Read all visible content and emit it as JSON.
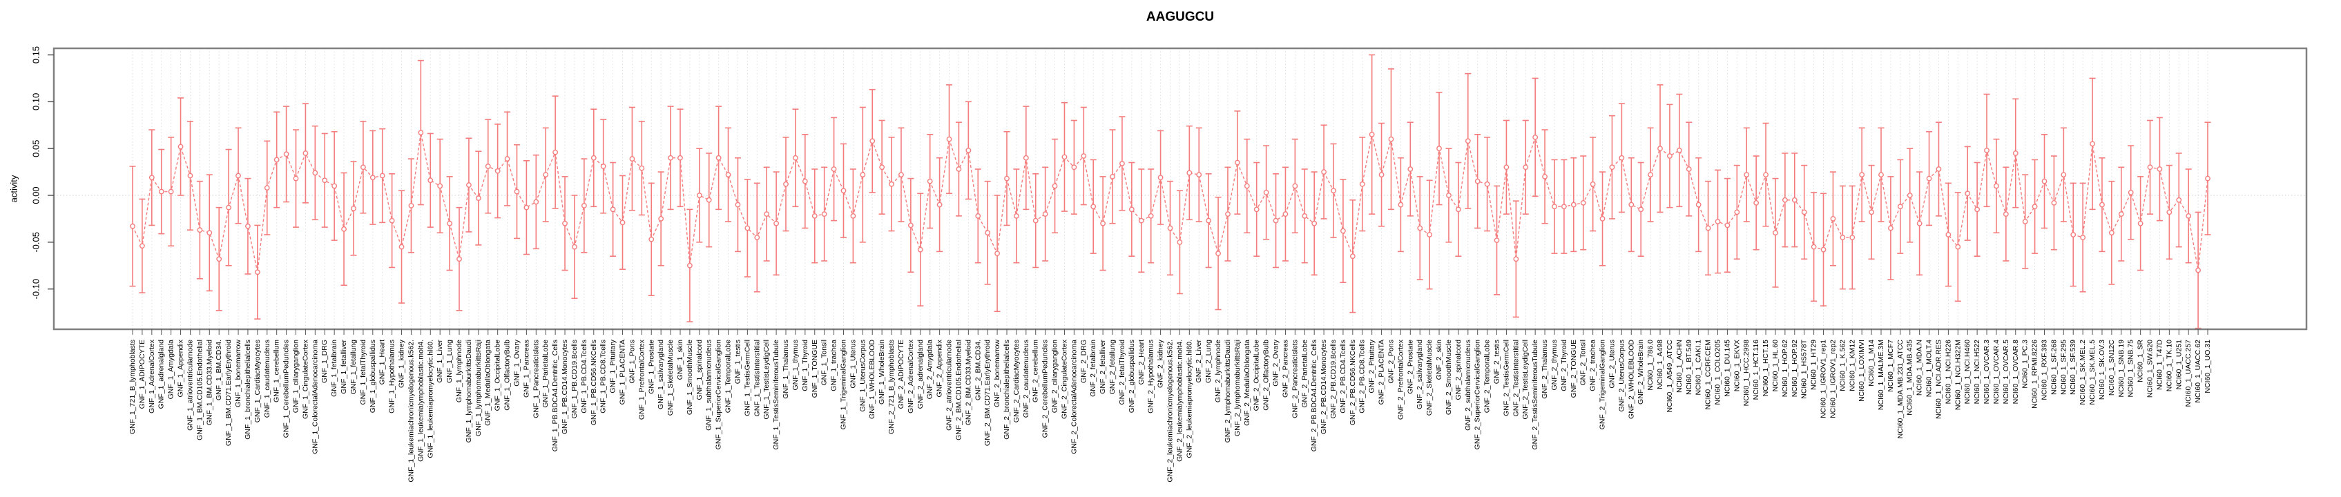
{
  "figure": {
    "title": "AAGUGCU"
  },
  "chart_data": {
    "type": "scatter",
    "title": "AAGUGCU",
    "xlabel": "",
    "ylabel": "activity",
    "ylim": [
      -0.143,
      0.157
    ],
    "yticks": [
      -0.1,
      -0.05,
      0.0,
      0.05,
      0.1,
      0.15
    ],
    "ytick_labels": [
      "-0.10",
      "-0.05",
      "0.00",
      "0.05",
      "0.10",
      "0.15"
    ],
    "legend_position": "none",
    "grid": {
      "vertical_per_category": true,
      "zero_line": true,
      "style": "dotted"
    },
    "marker": "open-circle",
    "line_style": "dashed",
    "error_bars": true,
    "colors": {
      "data": "#F47C7C",
      "box": "#808080",
      "grid": "#DEDEDE",
      "zero_line": "#CFCFCF",
      "tick": "#555555",
      "text": "#000000",
      "background": "#FFFFFF"
    },
    "categories": [
      "GNF_1_721_B_lymphoblasts",
      "GNF_1_ADIPOCYTE",
      "GNF_1_AdrenalCortex",
      "GNF_1_adrenalgland",
      "GNF_1_Amygdala",
      "GNF_1_Appendix",
      "GNF_1_atrioventricularnode",
      "GNF_1_BM.CD105.Endothelial",
      "GNF_1_BM.CD33.Myeloid",
      "GNF_1_BM.CD34.",
      "GNF_1_BM.CD71.EarlyErythroid",
      "GNF_1_bonemarrow",
      "GNF_1_bronchialepithelialcells",
      "GNF_1_CardiacMyocytes",
      "GNF_1_caudatenucleus",
      "GNF_1_cerebellum",
      "GNF_1_CerebellumPeduncles",
      "GNF_1_ciliaryganglion",
      "GNF_1_CingulateCortex",
      "GNF_1_ColorectalAdenocarcinoma",
      "GNF_1_DRG",
      "GNF_1_fetalbrain",
      "GNF_1_fetalliver",
      "GNF_1_fetallung",
      "GNF_1_fetalThyroid",
      "GNF_1_globuspallidus",
      "GNF_1_Heart",
      "GNF_1_Hypothalamus",
      "GNF_1_kidney",
      "GNF_1_leukemiachronicmyelogenous.k562.",
      "GNF_1_leukemialymphoblastic.molt4.",
      "GNF_1_leukemiapromyelocytic.hl60.",
      "GNF_1_Liver",
      "GNF_1_Lung",
      "GNF_1_lymphnode",
      "GNF_1_lymphomaburkittsDaudi",
      "GNF_1_lymphomaburkittsRaji",
      "GNF_1_MedullaOblongata",
      "GNF_1_OccipitalLobe",
      "GNF_1_OlfactoryBulb",
      "GNF_1_Ovary",
      "GNF_1_Pancreas",
      "GNF_1_PancreaticIslets",
      "GNF_1_ParietalLobe",
      "GNF_1_PB.BDCA4.Dentritic_Cells",
      "GNF_1_PB.CD14.Monocytes",
      "GNF_1_PB.CD19.Bcells",
      "GNF_1_PB.CD4.Tcells",
      "GNF_1_PB.CD56.NKCells",
      "GNF_1_PB.CD8.Tcells",
      "GNF_1_Pituitary",
      "GNF_1_PLACENTA",
      "GNF_1_Pons",
      "GNF_1_PrefrontalCortex",
      "GNF_1_Prostate",
      "GNF_1_salivarygland",
      "GNF_1_SkeletalMuscle",
      "GNF_1_skin",
      "GNF_1_SmoothMuscle",
      "GNF_1_spinalcord",
      "GNF_1_subthalamicnucleus",
      "GNF_1_SuperiorCervicalGanglion",
      "GNF_1_TemporalLobe",
      "GNF_1_testis",
      "GNF_1_TestisGermCell",
      "GNF_1_TestisInterstitial",
      "GNF_1_TestisLeydigCell",
      "GNF_1_TestisSeminiferousTubule",
      "GNF_1_Thalamus",
      "GNF_1_thymus",
      "GNF_1_Thyroid",
      "GNF_1_TONGUE",
      "GNF_1_Tonsil",
      "GNF_1_trachea",
      "GNF_1_TrigeminalGanglion",
      "GNF_1_Uterus",
      "GNF_1_UterusCorpus",
      "GNF_1_WHOLEBLOOD",
      "GNF_1_WholeBrain",
      "GNF_2_721_B_lymphoblasts",
      "GNF_2_ADIPOCYTE",
      "GNF_2_AdrenalCortex",
      "GNF_2_adrenalgland",
      "GNF_2_Amygdala",
      "GNF_2_Appendix",
      "GNF_2_atrioventricularnode",
      "GNF_2_BM.CD105.Endothelial",
      "GNF_2_BM.CD33.Myeloid",
      "GNF_2_BM.CD34.",
      "GNF_2_BM.CD71.EarlyErythroid",
      "GNF_2_bonemarrow",
      "GNF_2_bronchialepithelialcells",
      "GNF_2_CardiacMyocytes",
      "GNF_2_caudatenucleus",
      "GNF_2_cerebellum",
      "GNF_2_CerebellumPeduncles",
      "GNF_2_ciliaryganglion",
      "GNF_2_CingulateCortex",
      "GNF_2_ColorectalAdenocarcinoma",
      "GNF_2_DRG",
      "GNF_2_fetalbrain",
      "GNF_2_fetalliver",
      "GNF_2_fetallung",
      "GNF_2_fetalThyroid",
      "GNF_2_globuspallidus",
      "GNF_2_Heart",
      "GNF_2_Hypothalamus",
      "GNF_2_kidney",
      "GNF_2_leukemiachronicmyelogenous.k562.",
      "GNF_2_leukemialymphoblastic.molt4.",
      "GNF_2_leukemiapromyelocytic.hl60.",
      "GNF_2_Liver",
      "GNF_2_Lung",
      "GNF_2_lymphnode",
      "GNF_2_lymphomaburkittsDaudi",
      "GNF_2_lymphomaburkittsRaji",
      "GNF_2_MedullaOblongata",
      "GNF_2_OccipitalLobe",
      "GNF_2_OlfactoryBulb",
      "GNF_2_Ovary",
      "GNF_2_Pancreas",
      "GNF_2_PancreaticIslets",
      "GNF_2_ParietalLobe",
      "GNF_2_PB.BDCA4.Dentritic_Cells",
      "GNF_2_PB.CD14.Monocytes",
      "GNF_2_PB.CD19.Bcells",
      "GNF_2_PB.CD4.Tcells",
      "GNF_2_PB.CD56.NKCells",
      "GNF_2_PB.CD8.Tcells",
      "GNF_2_Pituitary",
      "GNF_2_PLACENTA",
      "GNF_2_Pons",
      "GNF_2_PrefrontalCortex",
      "GNF_2_Prostate",
      "GNF_2_salivarygland",
      "GNF_2_SkeletalMuscle",
      "GNF_2_skin",
      "GNF_2_SmoothMuscle",
      "GNF_2_spinalcord",
      "GNF_2_subthalamicnucleus",
      "GNF_2_SuperiorCervicalGanglion",
      "GNF_2_TemporalLobe",
      "GNF_2_testis",
      "GNF_2_TestisGermCell",
      "GNF_2_TestisInterstitial",
      "GNF_2_TestisLeydigCell",
      "GNF_2_TestisSeminiferousTubule",
      "GNF_2_Thalamus",
      "GNF_2_thymus",
      "GNF_2_Thyroid",
      "GNF_2_TONGUE",
      "GNF_2_Tonsil",
      "GNF_2_trachea",
      "GNF_2_TrigeminalGanglion",
      "GNF_2_Uterus",
      "GNF_2_UterusCorpus",
      "GNF_2_WHOLEBLOOD",
      "GNF_2_WholeBrain",
      "NCI60_1_786.0",
      "NCI60_1_A498",
      "NCI60_1_A549_ATCC",
      "NCI60_1_ACHN",
      "NCI60_1_BT.549",
      "NCI60_1_CAKI.1",
      "NCI60_1_CCRF.CEM",
      "NCI60_1_COLO205",
      "NCI60_1_DU.145",
      "NCI60_1_EKVX",
      "NCI60_1_HCC.2998",
      "NCI60_1_HCT.116",
      "NCI60_1_HCT.15",
      "NCI60_1_HL.60",
      "NCI60_1_HOP.62",
      "NCI60_1_HOP.92",
      "NCI60_1_HS578T",
      "NCI60_1_HT29",
      "NCI60_1_IGROV1_rep1",
      "NCI60_1_IGROV1_rep2",
      "NCI60_1_K.562",
      "NCI60_1_KM12",
      "NCI60_1_LOXIMVI",
      "NCI60_1_M14",
      "NCI60_1_MALME.3M",
      "NCI60_1_MCF7",
      "NCI60_1_MDA.MB.231_ATCC",
      "NCI60_1_MDA.MB.435",
      "NCI60_1_MDA.N",
      "NCI60_1_MOLT.4",
      "NCI60_1_NCI.ADR.RES",
      "NCI60_1_NCI.H226",
      "NCI60_1_NCI.H322M",
      "NCI60_1_NCI.H460",
      "NCI60_1_NCI.H522",
      "NCI60_1_OVCAR.3",
      "NCI60_1_OVCAR.4",
      "NCI60_1_OVCAR.5",
      "NCI60_1_OVCAR.8",
      "NCI60_1_PC.3",
      "NCI60_1_RPMI.8226",
      "NCI60_1_RXF.393",
      "NCI60_1_SF.268",
      "NCI60_1_SF.295",
      "NCI60_1_SF.539",
      "NCI60_1_SK.MEL.2",
      "NCI60_1_SK.MEL.5",
      "NCI60_1_SK.OV.3",
      "NCI60_1_SN12C",
      "NCI60_1_SNB.19",
      "NCI60_1_SNB.75",
      "NCI60_1_SR",
      "NCI60_1_SW.620",
      "NCI60_1_T47D",
      "NCI60_1_TK.10",
      "NCI60_1_U251",
      "NCI60_1_UACC.257",
      "NCI60_1_UACC.62",
      "NCI60_1_UO.31"
    ],
    "values": [
      -0.033,
      -0.054,
      0.019,
      0.004,
      0.004,
      0.052,
      0.021,
      -0.037,
      -0.04,
      -0.068,
      -0.013,
      0.021,
      -0.033,
      -0.082,
      0.008,
      0.038,
      0.044,
      0.018,
      0.045,
      0.024,
      0.016,
      0.01,
      -0.036,
      -0.014,
      0.03,
      0.019,
      0.021,
      -0.027,
      -0.055,
      -0.011,
      0.067,
      0.016,
      0.01,
      -0.03,
      -0.068,
      0.011,
      -0.003,
      0.031,
      0.026,
      0.039,
      0.004,
      -0.013,
      -0.007,
      0.022,
      0.046,
      -0.03,
      -0.055,
      -0.011,
      0.04,
      0.031,
      -0.015,
      -0.029,
      0.039,
      0.029,
      -0.047,
      -0.025,
      0.04,
      0.04,
      -0.075,
      0.0,
      -0.005,
      0.04,
      0.022,
      -0.01,
      -0.035,
      -0.045,
      -0.02,
      -0.03,
      0.012,
      0.04,
      0.015,
      -0.022,
      -0.02,
      0.028,
      0.005,
      -0.022,
      0.022,
      0.058,
      0.03,
      0.012,
      0.022,
      -0.032,
      -0.058,
      0.015,
      -0.01,
      0.06,
      0.028,
      0.048,
      -0.022,
      -0.04,
      -0.062,
      0.018,
      -0.022,
      0.04,
      -0.027,
      -0.02,
      0.01,
      0.041,
      0.03,
      0.042,
      -0.012,
      -0.03,
      0.02,
      0.034,
      -0.015,
      -0.027,
      -0.022,
      0.019,
      -0.035,
      -0.05,
      0.024,
      0.022,
      -0.027,
      -0.062,
      -0.02,
      0.035,
      0.01,
      -0.015,
      0.003,
      -0.027,
      -0.02,
      0.01,
      -0.022,
      -0.03,
      0.025,
      0.005,
      -0.038,
      -0.065,
      0.012,
      0.065,
      0.022,
      0.06,
      -0.01,
      0.028,
      -0.035,
      -0.042,
      0.05,
      0.0,
      -0.015,
      0.058,
      0.015,
      0.012,
      -0.048,
      0.03,
      -0.068,
      0.03,
      0.062,
      0.02,
      -0.012,
      -0.012,
      -0.01,
      -0.008,
      0.012,
      -0.025,
      0.03,
      0.04,
      -0.01,
      -0.015,
      0.022,
      0.05,
      0.042,
      0.048,
      0.028,
      -0.01,
      -0.035,
      -0.028,
      -0.032,
      -0.018,
      0.022,
      -0.008,
      0.022,
      -0.04,
      -0.005,
      -0.005,
      -0.018,
      -0.055,
      -0.058,
      -0.025,
      -0.045,
      -0.045,
      0.022,
      -0.018,
      0.022,
      -0.035,
      -0.012,
      0.0,
      -0.03,
      0.018,
      0.028,
      -0.042,
      -0.055,
      0.002,
      -0.015,
      0.048,
      0.01,
      -0.02,
      0.045,
      -0.028,
      -0.012,
      0.015,
      -0.008,
      0.022,
      -0.042,
      -0.045,
      0.055,
      -0.01,
      -0.04,
      -0.02,
      0.003,
      -0.03,
      0.03,
      0.028,
      -0.018,
      -0.005,
      -0.022,
      -0.08,
      0.018
    ],
    "errors": [
      0.064,
      0.05,
      0.051,
      0.045,
      0.058,
      0.052,
      0.058,
      0.052,
      0.062,
      0.055,
      0.062,
      0.051,
      0.051,
      0.05,
      0.05,
      0.051,
      0.051,
      0.052,
      0.053,
      0.05,
      0.05,
      0.058,
      0.06,
      0.05,
      0.049,
      0.05,
      0.05,
      0.05,
      0.06,
      0.05,
      0.077,
      0.05,
      0.05,
      0.05,
      0.055,
      0.05,
      0.05,
      0.05,
      0.05,
      0.05,
      0.05,
      0.05,
      0.05,
      0.05,
      0.06,
      0.05,
      0.055,
      0.05,
      0.052,
      0.05,
      0.05,
      0.05,
      0.055,
      0.05,
      0.06,
      0.05,
      0.055,
      0.052,
      0.06,
      0.05,
      0.05,
      0.055,
      0.05,
      0.05,
      0.052,
      0.058,
      0.05,
      0.055,
      0.05,
      0.052,
      0.05,
      0.05,
      0.05,
      0.055,
      0.05,
      0.05,
      0.072,
      0.055,
      0.05,
      0.05,
      0.05,
      0.05,
      0.06,
      0.05,
      0.05,
      0.058,
      0.05,
      0.052,
      0.05,
      0.055,
      0.062,
      0.05,
      0.05,
      0.055,
      0.05,
      0.05,
      0.05,
      0.058,
      0.05,
      0.052,
      0.05,
      0.05,
      0.05,
      0.05,
      0.05,
      0.055,
      0.05,
      0.05,
      0.05,
      0.055,
      0.05,
      0.05,
      0.05,
      0.06,
      0.05,
      0.055,
      0.05,
      0.05,
      0.05,
      0.05,
      0.05,
      0.05,
      0.05,
      0.055,
      0.05,
      0.05,
      0.055,
      0.06,
      0.05,
      0.085,
      0.055,
      0.075,
      0.05,
      0.05,
      0.055,
      0.058,
      0.06,
      0.05,
      0.05,
      0.072,
      0.05,
      0.05,
      0.058,
      0.05,
      0.062,
      0.05,
      0.063,
      0.05,
      0.05,
      0.05,
      0.05,
      0.05,
      0.05,
      0.05,
      0.055,
      0.058,
      0.05,
      0.05,
      0.05,
      0.068,
      0.055,
      0.06,
      0.05,
      0.05,
      0.05,
      0.055,
      0.05,
      0.05,
      0.05,
      0.05,
      0.055,
      0.058,
      0.05,
      0.05,
      0.05,
      0.058,
      0.06,
      0.05,
      0.055,
      0.055,
      0.05,
      0.05,
      0.05,
      0.055,
      0.05,
      0.05,
      0.055,
      0.05,
      0.05,
      0.055,
      0.058,
      0.05,
      0.05,
      0.06,
      0.05,
      0.05,
      0.058,
      0.05,
      0.05,
      0.05,
      0.05,
      0.05,
      0.055,
      0.058,
      0.07,
      0.05,
      0.055,
      0.05,
      0.05,
      0.05,
      0.05,
      0.055,
      0.05,
      0.05,
      0.05,
      0.062,
      0.06
    ]
  }
}
